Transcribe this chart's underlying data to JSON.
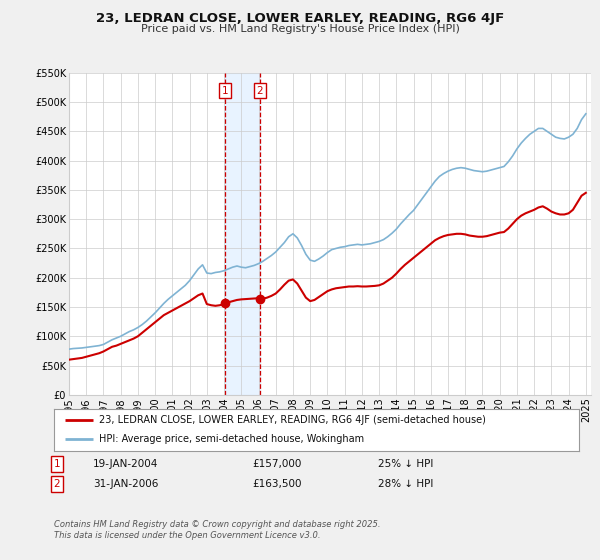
{
  "title": "23, LEDRAN CLOSE, LOWER EARLEY, READING, RG6 4JF",
  "subtitle": "Price paid vs. HM Land Registry's House Price Index (HPI)",
  "legend_line1": "23, LEDRAN CLOSE, LOWER EARLEY, READING, RG6 4JF (semi-detached house)",
  "legend_line2": "HPI: Average price, semi-detached house, Wokingham",
  "sale1_label": "1",
  "sale1_date": "19-JAN-2004",
  "sale1_price": "£157,000",
  "sale1_hpi": "25% ↓ HPI",
  "sale1_date_num": 2004.05,
  "sale1_price_val": 157000,
  "sale2_label": "2",
  "sale2_date": "31-JAN-2006",
  "sale2_price": "£163,500",
  "sale2_hpi": "28% ↓ HPI",
  "sale2_date_num": 2006.08,
  "sale2_price_val": 163500,
  "footer": "Contains HM Land Registry data © Crown copyright and database right 2025.\nThis data is licensed under the Open Government Licence v3.0.",
  "ylim": [
    0,
    550000
  ],
  "yticks": [
    0,
    50000,
    100000,
    150000,
    200000,
    250000,
    300000,
    350000,
    400000,
    450000,
    500000,
    550000
  ],
  "ytick_labels": [
    "£0",
    "£50K",
    "£100K",
    "£150K",
    "£200K",
    "£250K",
    "£300K",
    "£350K",
    "£400K",
    "£450K",
    "£500K",
    "£550K"
  ],
  "price_color": "#cc0000",
  "hpi_color": "#7fb3d3",
  "bg_color": "#f0f0f0",
  "plot_bg_color": "#ffffff",
  "grid_color": "#cccccc",
  "vline_color": "#cc0000",
  "shade_color": "#ddeeff",
  "hpi_data": [
    [
      1995.0,
      78000
    ],
    [
      1995.25,
      79000
    ],
    [
      1995.5,
      79500
    ],
    [
      1995.75,
      80000
    ],
    [
      1996.0,
      81000
    ],
    [
      1996.25,
      82000
    ],
    [
      1996.5,
      83000
    ],
    [
      1996.75,
      84000
    ],
    [
      1997.0,
      86000
    ],
    [
      1997.25,
      90000
    ],
    [
      1997.5,
      94000
    ],
    [
      1997.75,
      97000
    ],
    [
      1998.0,
      100000
    ],
    [
      1998.25,
      104000
    ],
    [
      1998.5,
      108000
    ],
    [
      1998.75,
      111000
    ],
    [
      1999.0,
      115000
    ],
    [
      1999.25,
      120000
    ],
    [
      1999.5,
      126000
    ],
    [
      1999.75,
      133000
    ],
    [
      2000.0,
      140000
    ],
    [
      2000.25,
      148000
    ],
    [
      2000.5,
      156000
    ],
    [
      2000.75,
      163000
    ],
    [
      2001.0,
      169000
    ],
    [
      2001.25,
      175000
    ],
    [
      2001.5,
      181000
    ],
    [
      2001.75,
      187000
    ],
    [
      2002.0,
      195000
    ],
    [
      2002.25,
      205000
    ],
    [
      2002.5,
      215000
    ],
    [
      2002.75,
      222000
    ],
    [
      2003.0,
      208000
    ],
    [
      2003.25,
      207000
    ],
    [
      2003.5,
      209000
    ],
    [
      2003.75,
      210000
    ],
    [
      2004.0,
      212000
    ],
    [
      2004.25,
      215000
    ],
    [
      2004.5,
      218000
    ],
    [
      2004.75,
      220000
    ],
    [
      2005.0,
      218000
    ],
    [
      2005.25,
      217000
    ],
    [
      2005.5,
      219000
    ],
    [
      2005.75,
      221000
    ],
    [
      2006.0,
      224000
    ],
    [
      2006.25,
      228000
    ],
    [
      2006.5,
      233000
    ],
    [
      2006.75,
      238000
    ],
    [
      2007.0,
      244000
    ],
    [
      2007.25,
      252000
    ],
    [
      2007.5,
      260000
    ],
    [
      2007.75,
      270000
    ],
    [
      2008.0,
      275000
    ],
    [
      2008.25,
      268000
    ],
    [
      2008.5,
      255000
    ],
    [
      2008.75,
      240000
    ],
    [
      2009.0,
      230000
    ],
    [
      2009.25,
      228000
    ],
    [
      2009.5,
      232000
    ],
    [
      2009.75,
      237000
    ],
    [
      2010.0,
      243000
    ],
    [
      2010.25,
      248000
    ],
    [
      2010.5,
      250000
    ],
    [
      2010.75,
      252000
    ],
    [
      2011.0,
      253000
    ],
    [
      2011.25,
      255000
    ],
    [
      2011.5,
      256000
    ],
    [
      2011.75,
      257000
    ],
    [
      2012.0,
      256000
    ],
    [
      2012.25,
      257000
    ],
    [
      2012.5,
      258000
    ],
    [
      2012.75,
      260000
    ],
    [
      2013.0,
      262000
    ],
    [
      2013.25,
      265000
    ],
    [
      2013.5,
      270000
    ],
    [
      2013.75,
      276000
    ],
    [
      2014.0,
      283000
    ],
    [
      2014.25,
      292000
    ],
    [
      2014.5,
      300000
    ],
    [
      2014.75,
      308000
    ],
    [
      2015.0,
      315000
    ],
    [
      2015.25,
      325000
    ],
    [
      2015.5,
      335000
    ],
    [
      2015.75,
      345000
    ],
    [
      2016.0,
      355000
    ],
    [
      2016.25,
      365000
    ],
    [
      2016.5,
      373000
    ],
    [
      2016.75,
      378000
    ],
    [
      2017.0,
      382000
    ],
    [
      2017.25,
      385000
    ],
    [
      2017.5,
      387000
    ],
    [
      2017.75,
      388000
    ],
    [
      2018.0,
      387000
    ],
    [
      2018.25,
      385000
    ],
    [
      2018.5,
      383000
    ],
    [
      2018.75,
      382000
    ],
    [
      2019.0,
      381000
    ],
    [
      2019.25,
      382000
    ],
    [
      2019.5,
      384000
    ],
    [
      2019.75,
      386000
    ],
    [
      2020.0,
      388000
    ],
    [
      2020.25,
      390000
    ],
    [
      2020.5,
      398000
    ],
    [
      2020.75,
      408000
    ],
    [
      2021.0,
      420000
    ],
    [
      2021.25,
      430000
    ],
    [
      2021.5,
      438000
    ],
    [
      2021.75,
      445000
    ],
    [
      2022.0,
      450000
    ],
    [
      2022.25,
      455000
    ],
    [
      2022.5,
      455000
    ],
    [
      2022.75,
      450000
    ],
    [
      2023.0,
      445000
    ],
    [
      2023.25,
      440000
    ],
    [
      2023.5,
      438000
    ],
    [
      2023.75,
      437000
    ],
    [
      2024.0,
      440000
    ],
    [
      2024.25,
      445000
    ],
    [
      2024.5,
      455000
    ],
    [
      2024.75,
      470000
    ],
    [
      2025.0,
      480000
    ]
  ],
  "price_data": [
    [
      1995.0,
      60000
    ],
    [
      1995.25,
      61000
    ],
    [
      1995.5,
      62000
    ],
    [
      1995.75,
      63000
    ],
    [
      1996.0,
      65000
    ],
    [
      1996.25,
      67000
    ],
    [
      1996.5,
      69000
    ],
    [
      1996.75,
      71000
    ],
    [
      1997.0,
      74000
    ],
    [
      1997.25,
      78000
    ],
    [
      1997.5,
      82000
    ],
    [
      1997.75,
      84000
    ],
    [
      1998.0,
      87000
    ],
    [
      1998.25,
      90000
    ],
    [
      1998.5,
      93000
    ],
    [
      1998.75,
      96000
    ],
    [
      1999.0,
      100000
    ],
    [
      1999.25,
      106000
    ],
    [
      1999.5,
      112000
    ],
    [
      1999.75,
      118000
    ],
    [
      2000.0,
      124000
    ],
    [
      2000.25,
      130000
    ],
    [
      2000.5,
      136000
    ],
    [
      2000.75,
      140000
    ],
    [
      2001.0,
      144000
    ],
    [
      2001.25,
      148000
    ],
    [
      2001.5,
      152000
    ],
    [
      2001.75,
      156000
    ],
    [
      2002.0,
      160000
    ],
    [
      2002.25,
      165000
    ],
    [
      2002.5,
      170000
    ],
    [
      2002.75,
      173000
    ],
    [
      2003.0,
      155000
    ],
    [
      2003.25,
      153000
    ],
    [
      2003.5,
      152000
    ],
    [
      2003.75,
      153000
    ],
    [
      2004.0,
      155000
    ],
    [
      2004.05,
      157000
    ],
    [
      2004.25,
      158000
    ],
    [
      2004.5,
      160000
    ],
    [
      2004.75,
      162000
    ],
    [
      2005.0,
      163000
    ],
    [
      2005.5,
      164000
    ],
    [
      2005.75,
      164500
    ],
    [
      2006.0,
      165000
    ],
    [
      2006.08,
      163500
    ],
    [
      2006.25,
      164000
    ],
    [
      2006.5,
      166000
    ],
    [
      2006.75,
      169000
    ],
    [
      2007.0,
      173000
    ],
    [
      2007.25,
      180000
    ],
    [
      2007.5,
      188000
    ],
    [
      2007.75,
      195000
    ],
    [
      2008.0,
      197000
    ],
    [
      2008.25,
      190000
    ],
    [
      2008.5,
      178000
    ],
    [
      2008.75,
      166000
    ],
    [
      2009.0,
      160000
    ],
    [
      2009.25,
      162000
    ],
    [
      2009.5,
      167000
    ],
    [
      2009.75,
      172000
    ],
    [
      2010.0,
      177000
    ],
    [
      2010.25,
      180000
    ],
    [
      2010.5,
      182000
    ],
    [
      2010.75,
      183000
    ],
    [
      2011.0,
      184000
    ],
    [
      2011.25,
      185000
    ],
    [
      2011.5,
      185000
    ],
    [
      2011.75,
      185500
    ],
    [
      2012.0,
      185000
    ],
    [
      2012.25,
      185000
    ],
    [
      2012.5,
      185500
    ],
    [
      2012.75,
      186000
    ],
    [
      2013.0,
      187000
    ],
    [
      2013.25,
      190000
    ],
    [
      2013.5,
      195000
    ],
    [
      2013.75,
      200000
    ],
    [
      2014.0,
      207000
    ],
    [
      2014.25,
      215000
    ],
    [
      2014.5,
      222000
    ],
    [
      2014.75,
      228000
    ],
    [
      2015.0,
      234000
    ],
    [
      2015.25,
      240000
    ],
    [
      2015.5,
      246000
    ],
    [
      2015.75,
      252000
    ],
    [
      2016.0,
      258000
    ],
    [
      2016.25,
      264000
    ],
    [
      2016.5,
      268000
    ],
    [
      2016.75,
      271000
    ],
    [
      2017.0,
      273000
    ],
    [
      2017.25,
      274000
    ],
    [
      2017.5,
      275000
    ],
    [
      2017.75,
      275000
    ],
    [
      2018.0,
      274000
    ],
    [
      2018.25,
      272000
    ],
    [
      2018.5,
      271000
    ],
    [
      2018.75,
      270000
    ],
    [
      2019.0,
      270000
    ],
    [
      2019.25,
      271000
    ],
    [
      2019.5,
      273000
    ],
    [
      2019.75,
      275000
    ],
    [
      2020.0,
      277000
    ],
    [
      2020.25,
      278000
    ],
    [
      2020.5,
      284000
    ],
    [
      2020.75,
      292000
    ],
    [
      2021.0,
      300000
    ],
    [
      2021.25,
      306000
    ],
    [
      2021.5,
      310000
    ],
    [
      2021.75,
      313000
    ],
    [
      2022.0,
      316000
    ],
    [
      2022.25,
      320000
    ],
    [
      2022.5,
      322000
    ],
    [
      2022.75,
      318000
    ],
    [
      2023.0,
      313000
    ],
    [
      2023.25,
      310000
    ],
    [
      2023.5,
      308000
    ],
    [
      2023.75,
      308000
    ],
    [
      2024.0,
      310000
    ],
    [
      2024.25,
      316000
    ],
    [
      2024.5,
      328000
    ],
    [
      2024.75,
      340000
    ],
    [
      2025.0,
      345000
    ]
  ],
  "xlim": [
    1995.0,
    2025.3
  ],
  "xticks": [
    1995,
    1996,
    1997,
    1998,
    1999,
    2000,
    2001,
    2002,
    2003,
    2004,
    2005,
    2006,
    2007,
    2008,
    2009,
    2010,
    2011,
    2012,
    2013,
    2014,
    2015,
    2016,
    2017,
    2018,
    2019,
    2020,
    2021,
    2022,
    2023,
    2024,
    2025
  ]
}
